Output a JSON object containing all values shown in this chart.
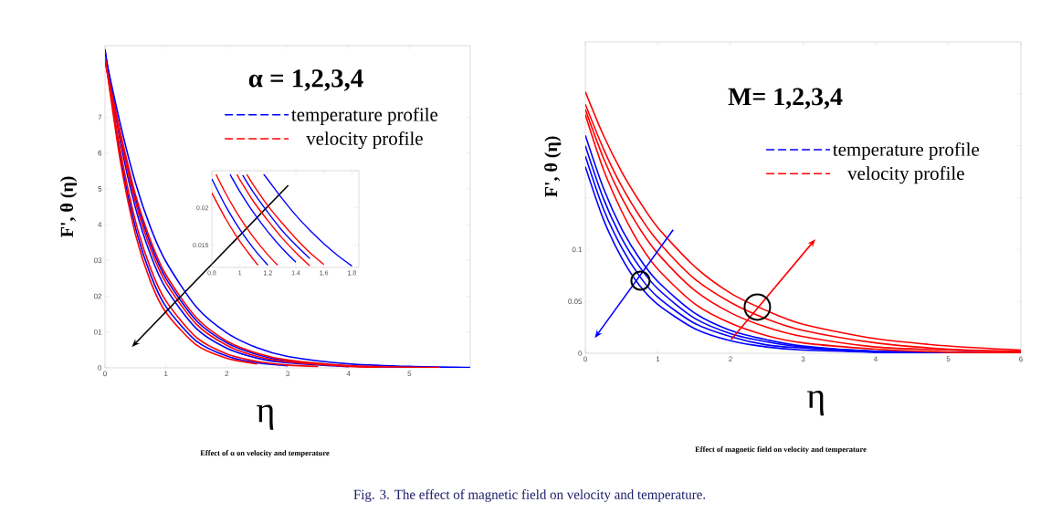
{
  "chart_data": [
    {
      "type": "line",
      "xlabel": "η",
      "ylabel": "F', θ (η)",
      "subtitle": "Effect of α on velocity and temperature",
      "annotations": [
        "α = 1,2,3,4"
      ],
      "legend": "top right",
      "x": [
        0,
        0.25,
        0.5,
        0.75,
        1,
        1.5,
        2,
        2.5,
        3,
        4,
        5,
        6
      ],
      "xlim": [
        0,
        6
      ],
      "ylim": [
        0,
        9
      ],
      "xticks": [
        0,
        1,
        2,
        3,
        4,
        5
      ],
      "yticks": [
        0,
        {
          "value": 1,
          "label": "01"
        },
        {
          "value": 2,
          "label": "02"
        },
        {
          "value": 3,
          "label": "03"
        },
        4,
        5,
        6,
        7
      ],
      "series": [
        {
          "name": "temperature profile",
          "color": "#0000ff",
          "x": [
            0,
            0.25,
            0.5,
            0.75,
            1,
            1.5,
            2,
            2.5,
            3
          ],
          "values": [
            8.9,
            5.94,
            3.92,
            2.59,
            1.71,
            0.75,
            0.33,
            0.14,
            0.06
          ]
        },
        {
          "color": "#0000ff",
          "x": [
            0,
            0.25,
            0.5,
            0.75,
            1,
            1.5,
            2,
            2.5,
            3,
            4
          ],
          "values": [
            8.85,
            6.34,
            4.47,
            3.15,
            2.22,
            1.1,
            0.55,
            0.27,
            0.14,
            0.03
          ]
        },
        {
          "color": "#0000ff",
          "x": [
            0,
            0.25,
            0.5,
            0.75,
            1,
            1.5,
            2,
            2.5,
            3,
            4,
            5
          ],
          "values": [
            8.8,
            6.53,
            4.74,
            3.45,
            2.5,
            1.32,
            0.7,
            0.37,
            0.19,
            0.05,
            0.02
          ]
        },
        {
          "color": "#0000ff",
          "values": [
            8.75,
            6.82,
            5.17,
            3.91,
            2.97,
            1.7,
            0.98,
            0.56,
            0.32,
            0.11,
            0.04,
            0.01
          ]
        },
        {
          "name": "velocity profile",
          "color": "#ff0000",
          "x": [
            0,
            0.25,
            0.5,
            0.75,
            1,
            1.5,
            2,
            2.5
          ],
          "values": [
            8.7,
            5.8,
            3.73,
            2.4,
            1.55,
            0.64,
            0.27,
            0.11
          ]
        },
        {
          "color": "#ff0000",
          "x": [
            0,
            0.25,
            0.5,
            0.75,
            1,
            1.5,
            2,
            2.5,
            3,
            3.5
          ],
          "values": [
            8.65,
            6.08,
            4.1,
            2.77,
            1.87,
            0.85,
            0.39,
            0.18,
            0.08,
            0.04
          ]
        },
        {
          "color": "#ff0000",
          "x": [
            0,
            0.25,
            0.5,
            0.75,
            1,
            1.5,
            2,
            2.5,
            3,
            4,
            4.5
          ],
          "values": [
            8.6,
            6.45,
            4.63,
            3.32,
            2.38,
            1.22,
            0.63,
            0.32,
            0.17,
            0.04,
            0.02
          ]
        },
        {
          "color": "#ff0000",
          "x": [
            0,
            0.25,
            0.5,
            0.75,
            1,
            1.5,
            2,
            2.5,
            3,
            4,
            5,
            5.5
          ],
          "values": [
            8.55,
            6.6,
            4.84,
            3.55,
            2.6,
            1.4,
            0.75,
            0.41,
            0.22,
            0.06,
            0.02,
            0.01
          ]
        }
      ]
    },
    {
      "type": "line",
      "xlim": [
        0.8,
        1.85
      ],
      "ylim": [
        0.012,
        0.025
      ],
      "xticks": [
        0.8,
        1,
        1.2,
        1.4,
        1.6,
        1.8
      ],
      "yticks": [
        0.015,
        0.02
      ],
      "series": [
        {
          "color": "#0000ff",
          "x": [
            0.8,
            0.9,
            1.0,
            1.1,
            1.2
          ],
          "values": [
            0.0239,
            0.0202,
            0.0171,
            0.0145,
            0.0123
          ]
        },
        {
          "color": "#0000ff",
          "x": [
            0.93,
            1.0,
            1.1,
            1.2,
            1.3,
            1.4
          ],
          "values": [
            0.0245,
            0.0222,
            0.0193,
            0.0168,
            0.0146,
            0.0127
          ]
        },
        {
          "color": "#0000ff",
          "x": [
            1.02,
            1.1,
            1.2,
            1.3,
            1.4,
            1.5
          ],
          "values": [
            0.0244,
            0.022,
            0.0194,
            0.017,
            0.015,
            0.0132
          ]
        },
        {
          "color": "#0000ff",
          "x": [
            1.17,
            1.2,
            1.3,
            1.4,
            1.5,
            1.6,
            1.7,
            1.8
          ],
          "values": [
            0.0245,
            0.0238,
            0.0213,
            0.019,
            0.017,
            0.0152,
            0.0136,
            0.0122
          ]
        },
        {
          "color": "#ff0000",
          "x": [
            0.8,
            0.9,
            1.0,
            1.1,
            1.13
          ],
          "values": [
            0.022,
            0.0185,
            0.0155,
            0.013,
            0.0123
          ]
        },
        {
          "color": "#ff0000",
          "x": [
            0.83,
            0.9,
            1.0,
            1.1,
            1.2,
            1.27
          ],
          "values": [
            0.0245,
            0.0219,
            0.0187,
            0.016,
            0.0137,
            0.0123
          ]
        },
        {
          "color": "#ff0000",
          "x": [
            0.98,
            1.0,
            1.1,
            1.2,
            1.3,
            1.4,
            1.5
          ],
          "values": [
            0.0245,
            0.0238,
            0.0208,
            0.0183,
            0.016,
            0.014,
            0.0122
          ]
        },
        {
          "color": "#ff0000",
          "x": [
            1.05,
            1.1,
            1.2,
            1.3,
            1.4,
            1.5,
            1.6
          ],
          "values": [
            0.0245,
            0.023,
            0.0203,
            0.018,
            0.0159,
            0.014,
            0.0124
          ]
        }
      ]
    },
    {
      "type": "line",
      "xlabel": "η",
      "ylabel": "F', θ (η)",
      "subtitle": "Effect of magnetic field on velocity and temperature",
      "annotations": [
        "M= 1,2,3,4",
        "Fig. 3. The effect of magnetic field on velocity and temperature."
      ],
      "legend": "top right",
      "x": [
        0,
        0.25,
        0.5,
        0.75,
        1,
        1.5,
        2,
        2.5,
        3,
        4,
        5,
        6
      ],
      "xlim": [
        0,
        6
      ],
      "ylim": [
        0,
        0.3
      ],
      "xticks": [
        0,
        1,
        2,
        3,
        4,
        5,
        6
      ],
      "yticks": [
        0,
        0.05,
        0.1,
        {
          "value": 0.15,
          "label": null
        },
        {
          "value": 0.2,
          "label": null
        },
        {
          "value": 0.25,
          "label": null
        }
      ],
      "series": [
        {
          "name": "temperature profile",
          "color": "#0000ff",
          "values": [
            0.18,
            0.129,
            0.092,
            0.065,
            0.047,
            0.024,
            0.012,
            0.006,
            0.003,
            0.001,
            0,
            0
          ]
        },
        {
          "color": "#0000ff",
          "values": [
            0.19,
            0.139,
            0.102,
            0.074,
            0.054,
            0.029,
            0.016,
            0.008,
            0.005,
            0.001,
            0,
            0
          ]
        },
        {
          "color": "#0000ff",
          "values": [
            0.2,
            0.149,
            0.111,
            0.083,
            0.062,
            0.034,
            0.019,
            0.011,
            0.006,
            0.002,
            null,
            0
          ]
        },
        {
          "color": "#0000ff",
          "values": [
            0.21,
            0.159,
            0.12,
            0.091,
            0.069,
            0.039,
            0.022,
            0.013,
            0.007,
            0.002,
            null,
            0
          ]
        },
        {
          "name": "velocity profile",
          "color": "#ff0000",
          "values": [
            0.23,
            0.177,
            0.137,
            0.105,
            0.081,
            0.048,
            0.029,
            0.017,
            0.01,
            0.004,
            0.001,
            0
          ]
        },
        {
          "color": "#ff0000",
          "values": [
            0.235,
            0.188,
            0.15,
            0.12,
            0.096,
            0.061,
            0.039,
            0.025,
            0.016,
            0.006,
            0.003,
            0.001
          ]
        },
        {
          "color": "#ff0000",
          "values": [
            0.24,
            0.197,
            0.161,
            0.132,
            0.108,
            0.072,
            0.049,
            0.033,
            0.022,
            0.01,
            0.004,
            0.002
          ]
        },
        {
          "color": "#ff0000",
          "values": [
            0.252,
            0.21,
            0.175,
            0.146,
            0.121,
            0.084,
            0.058,
            0.041,
            0.028,
            0.014,
            0.007,
            0.003
          ]
        }
      ]
    }
  ]
}
